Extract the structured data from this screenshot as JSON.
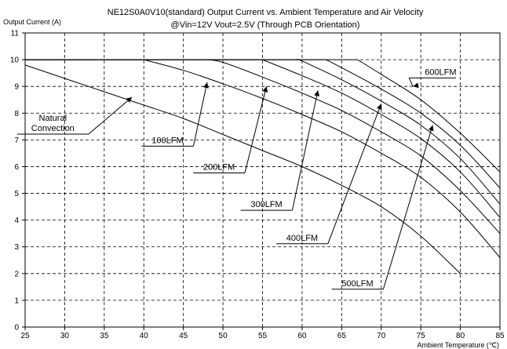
{
  "chart_data": {
    "type": "line",
    "title": "NE12S0A0V10(standard)  Output Current vs. Ambient Temperature and Air Velocity",
    "subtitle": "@Vin=12V Vout=2.5V (Through PCB Orientation)",
    "xlabel": "Ambient Temperature (℃)",
    "ylabel": "Output Current (A)",
    "xlim": [
      25,
      85
    ],
    "ylim": [
      0,
      11
    ],
    "xticks": [
      "25",
      "30",
      "35",
      "40",
      "45",
      "50",
      "55",
      "60",
      "65",
      "70",
      "75",
      "80",
      "85"
    ],
    "yticks": [
      "0",
      "1",
      "2",
      "3",
      "4",
      "5",
      "6",
      "7",
      "8",
      "9",
      "10",
      "11"
    ],
    "grid": "dashed",
    "legend": "none",
    "series": [
      {
        "name": "Natural Convection",
        "x": [
          25,
          30,
          35,
          40,
          45,
          50,
          55,
          60,
          65,
          70,
          75,
          80
        ],
        "y": [
          9.8,
          9.3,
          8.8,
          8.3,
          7.8,
          7.2,
          6.6,
          6.0,
          5.3,
          4.5,
          3.4,
          2.0
        ],
        "label": {
          "at": [
            38.5,
            8.6
          ],
          "text_at": [
            28.5,
            7.45
          ],
          "lines": [
            "Natural",
            "Convection"
          ]
        }
      },
      {
        "name": "100LFM",
        "x": [
          25,
          40,
          45,
          50,
          55,
          60,
          65,
          70,
          75,
          80,
          85
        ],
        "y": [
          10,
          10,
          9.6,
          9.1,
          8.55,
          7.95,
          7.3,
          6.5,
          5.6,
          4.3,
          2.6
        ],
        "label": {
          "at": [
            48,
            9.15
          ],
          "text_at": [
            43,
            7.0
          ],
          "lines": [
            "100LFM"
          ]
        }
      },
      {
        "name": "200LFM",
        "x": [
          25,
          48,
          50,
          55,
          60,
          65,
          70,
          75,
          80,
          85
        ],
        "y": [
          10,
          10,
          9.9,
          9.35,
          8.75,
          8.1,
          7.3,
          6.4,
          5.1,
          3.5
        ],
        "label": {
          "at": [
            55.5,
            9.0
          ],
          "text_at": [
            49.5,
            6.0
          ],
          "lines": [
            "200LFM"
          ]
        }
      },
      {
        "name": "300LFM",
        "x": [
          25,
          55,
          60,
          65,
          70,
          75,
          80,
          85
        ],
        "y": [
          10,
          10,
          9.4,
          8.75,
          7.95,
          7.05,
          5.8,
          4.1
        ],
        "label": {
          "at": [
            62,
            8.85
          ],
          "text_at": [
            55.5,
            4.6
          ],
          "lines": [
            "300LFM"
          ]
        }
      },
      {
        "name": "400LFM",
        "x": [
          25,
          59.5,
          60,
          65,
          70,
          75,
          80,
          85
        ],
        "y": [
          10,
          10,
          9.95,
          9.25,
          8.45,
          7.55,
          6.3,
          4.6
        ],
        "label": {
          "at": [
            70,
            8.35
          ],
          "text_at": [
            60,
            3.35
          ],
          "lines": [
            "400LFM"
          ]
        }
      },
      {
        "name": "500LFM",
        "x": [
          25,
          63,
          65,
          70,
          75,
          80,
          85
        ],
        "y": [
          10,
          10,
          9.7,
          8.9,
          8.0,
          6.8,
          5.2
        ],
        "label": {
          "at": [
            76.5,
            7.55
          ],
          "text_at": [
            67,
            1.65
          ],
          "lines": [
            "500LFM"
          ]
        }
      },
      {
        "name": "600LFM",
        "x": [
          25,
          67,
          70,
          75,
          80,
          85
        ],
        "y": [
          10,
          10,
          9.45,
          8.5,
          7.25,
          5.8
        ],
        "label": {
          "at": [
            74,
            9.0
          ],
          "text_at": [
            75.5,
            9.55
          ],
          "lines": [
            "600LFM"
          ]
        }
      }
    ]
  }
}
